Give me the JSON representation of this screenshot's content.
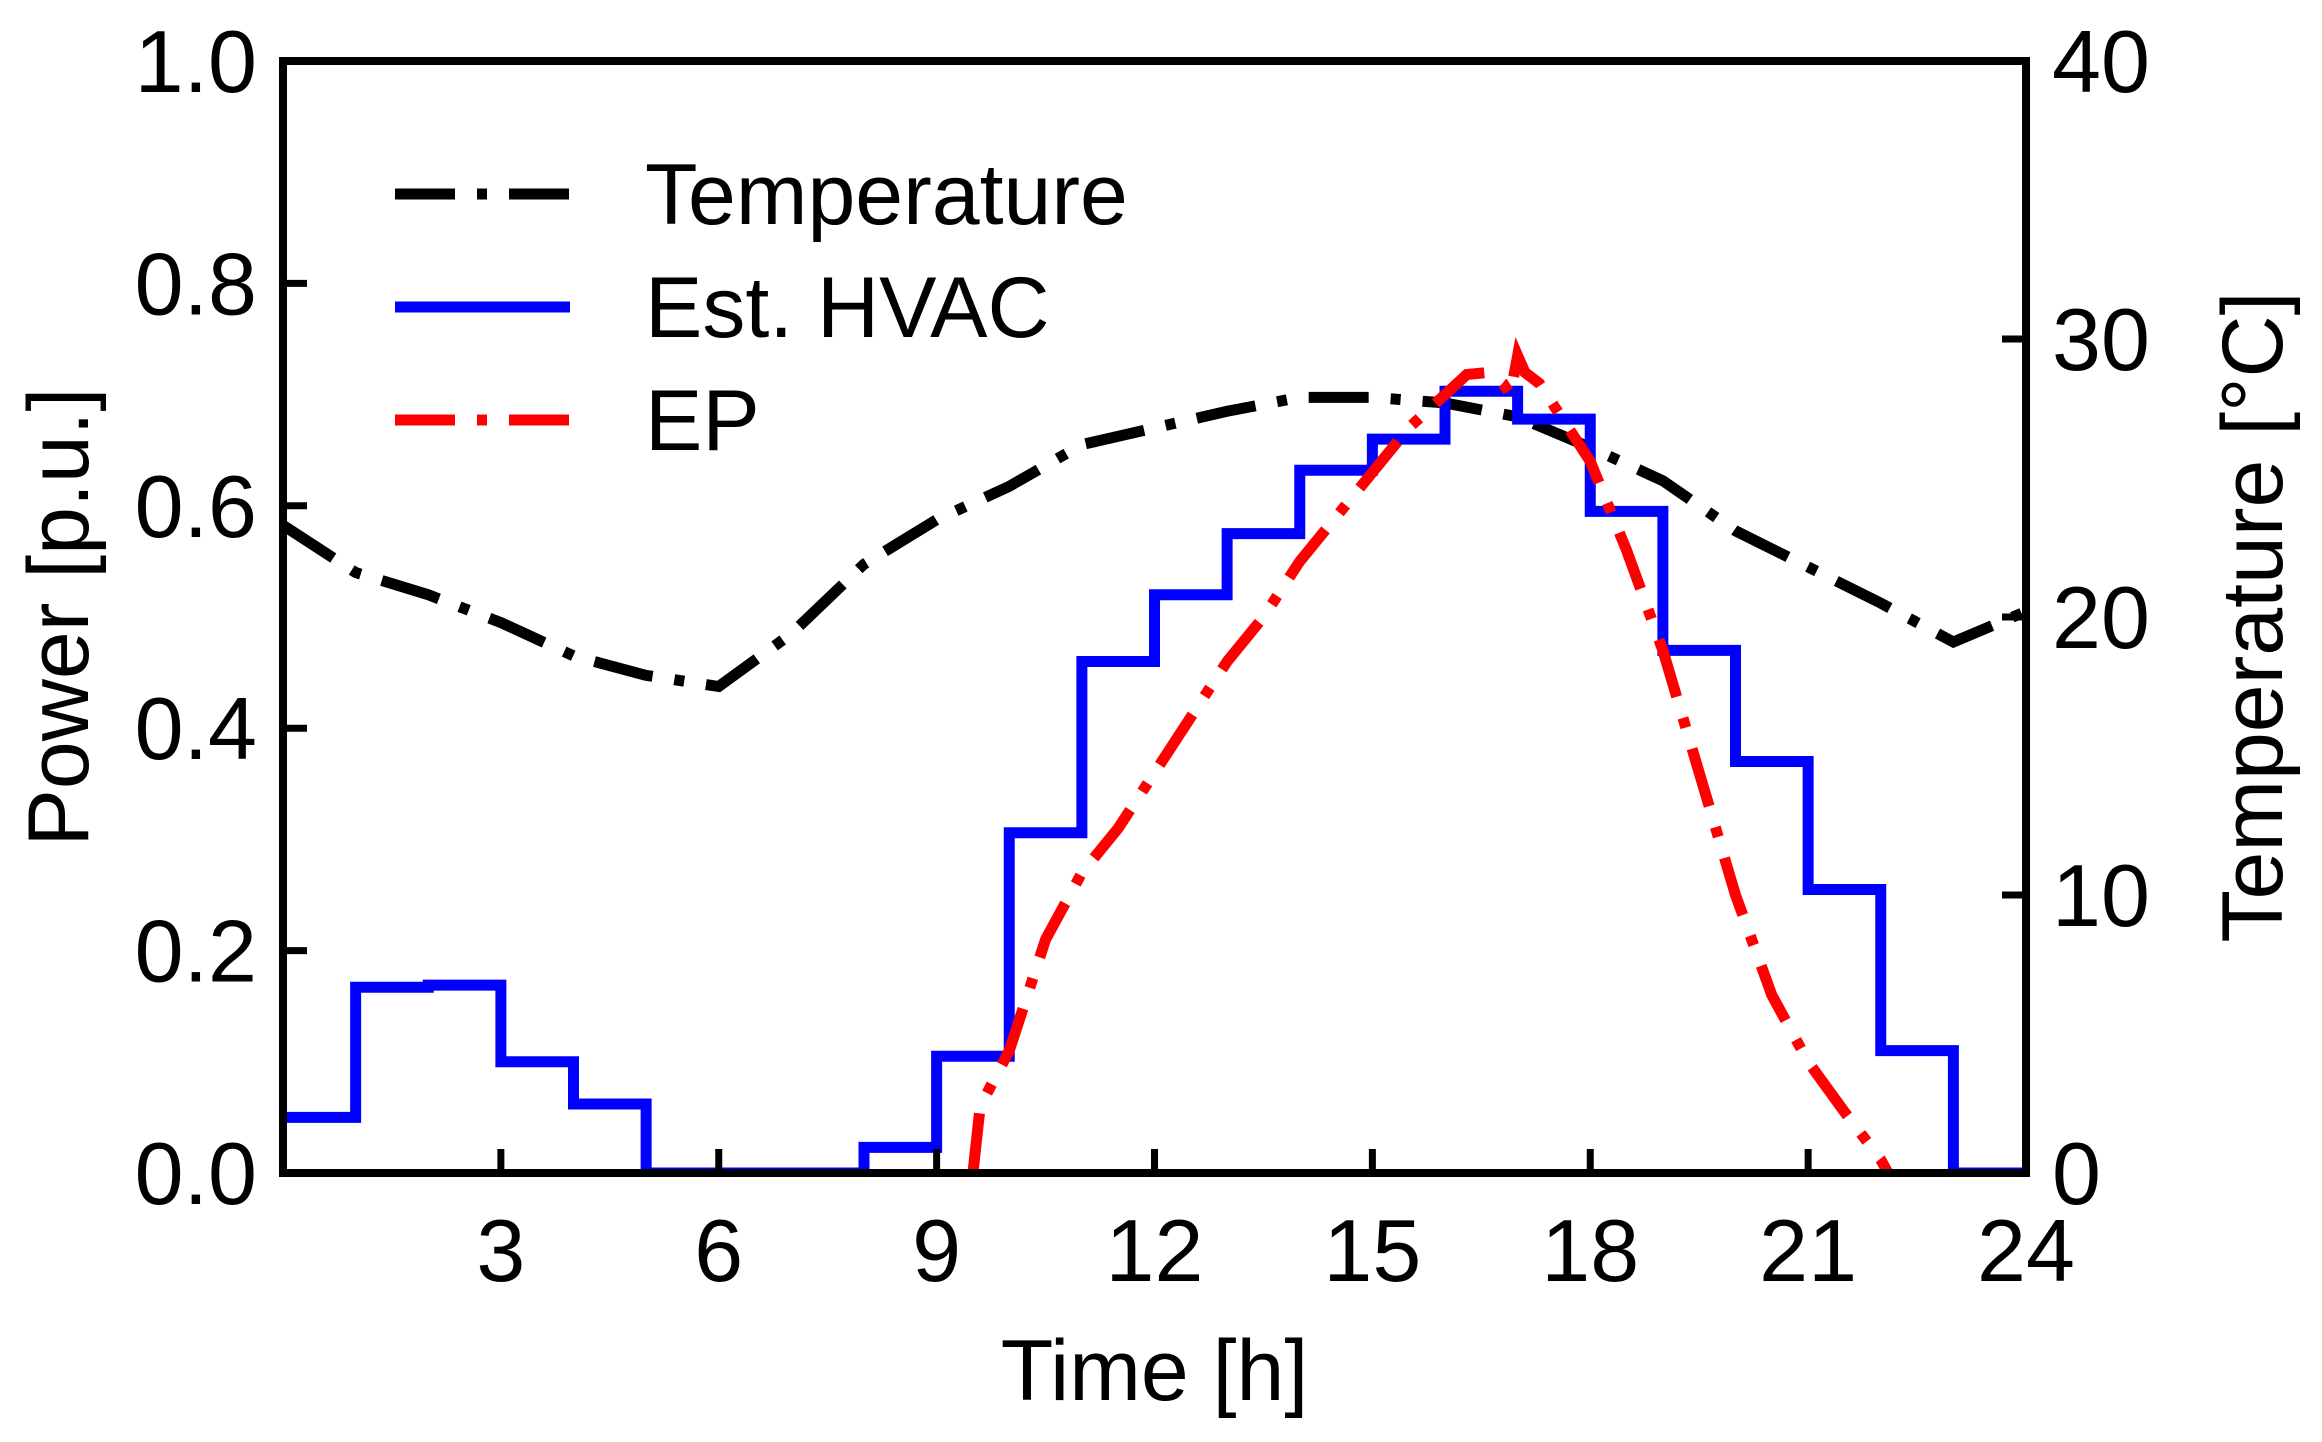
{
  "chart_data": {
    "type": "line",
    "title": "",
    "xlabel": "Time [h]",
    "ylabel": "Power [p.u.]",
    "y2label": "Temperature [°C]",
    "xlim": [
      0,
      24
    ],
    "ylim": [
      0,
      1.0
    ],
    "y2lim": [
      0,
      40
    ],
    "x_ticks": [
      3,
      6,
      9,
      12,
      15,
      18,
      21,
      24
    ],
    "x_tick_labels": [
      "3",
      "6",
      "9",
      "12",
      "15",
      "18",
      "21",
      "24"
    ],
    "y_ticks": [
      0,
      0.2,
      0.4,
      0.6,
      0.8,
      1.0
    ],
    "y_tick_labels": [
      "0.0",
      "0.2",
      "0.4",
      "0.6",
      "0.8",
      "1.0"
    ],
    "y2_ticks": [
      0,
      10,
      20,
      30,
      40
    ],
    "y2_tick_labels": [
      "0",
      "10",
      "20",
      "30",
      "40"
    ],
    "grid": false,
    "legend_position": "top-left",
    "series": [
      {
        "name": "Temperature",
        "axis": "right",
        "style": "dash-dot",
        "color": "#000000",
        "x": [
          0,
          1,
          2,
          3,
          4,
          5,
          6,
          7,
          8,
          9,
          10,
          11,
          12,
          13,
          14,
          15,
          16,
          17,
          18,
          19,
          20,
          21,
          22,
          23,
          24
        ],
        "y": [
          23.3,
          21.6,
          20.8,
          19.8,
          18.6,
          17.9,
          17.5,
          19.4,
          21.9,
          23.5,
          24.7,
          26.2,
          26.8,
          27.4,
          27.9,
          27.9,
          27.7,
          27.2,
          26.1,
          24.9,
          23.1,
          21.8,
          20.5,
          19.1,
          20.2
        ]
      },
      {
        "name": "Est. HVAC",
        "axis": "left",
        "style": "step",
        "color": "#0000ff",
        "x": [
          0,
          1,
          2,
          3,
          4,
          5,
          6,
          7,
          8,
          9,
          10,
          11,
          12,
          13,
          14,
          15,
          16,
          17,
          18,
          19,
          20,
          21,
          22,
          23,
          24
        ],
        "y": [
          0.05,
          0.167,
          0.169,
          0.1,
          0.062,
          0.0,
          0.0,
          0.0,
          0.023,
          0.105,
          0.306,
          0.46,
          0.52,
          0.575,
          0.632,
          0.66,
          0.703,
          0.678,
          0.595,
          0.47,
          0.37,
          0.255,
          0.11,
          0.0,
          0.0
        ]
      },
      {
        "name": "EP",
        "axis": "left",
        "style": "dash-dot",
        "color": "#ff0000",
        "x": [
          9.5,
          9.6,
          10.0,
          10.5,
          11.0,
          11.5,
          12.0,
          12.5,
          13.0,
          13.5,
          14.0,
          14.5,
          15.0,
          15.5,
          16.0,
          16.3,
          16.6,
          16.8,
          16.9,
          17.0,
          17.1,
          17.3,
          17.6,
          18.0,
          18.5,
          19.0,
          19.5,
          20.0,
          20.5,
          21.0,
          21.5,
          22.0,
          22.1
        ],
        "y": [
          0.0,
          0.06,
          0.11,
          0.21,
          0.27,
          0.31,
          0.36,
          0.41,
          0.46,
          0.5,
          0.55,
          0.59,
          0.63,
          0.67,
          0.7,
          0.718,
          0.72,
          0.71,
          0.7,
          0.735,
          0.72,
          0.71,
          0.68,
          0.64,
          0.56,
          0.47,
          0.36,
          0.25,
          0.16,
          0.1,
          0.055,
          0.012,
          0.0
        ]
      }
    ]
  }
}
